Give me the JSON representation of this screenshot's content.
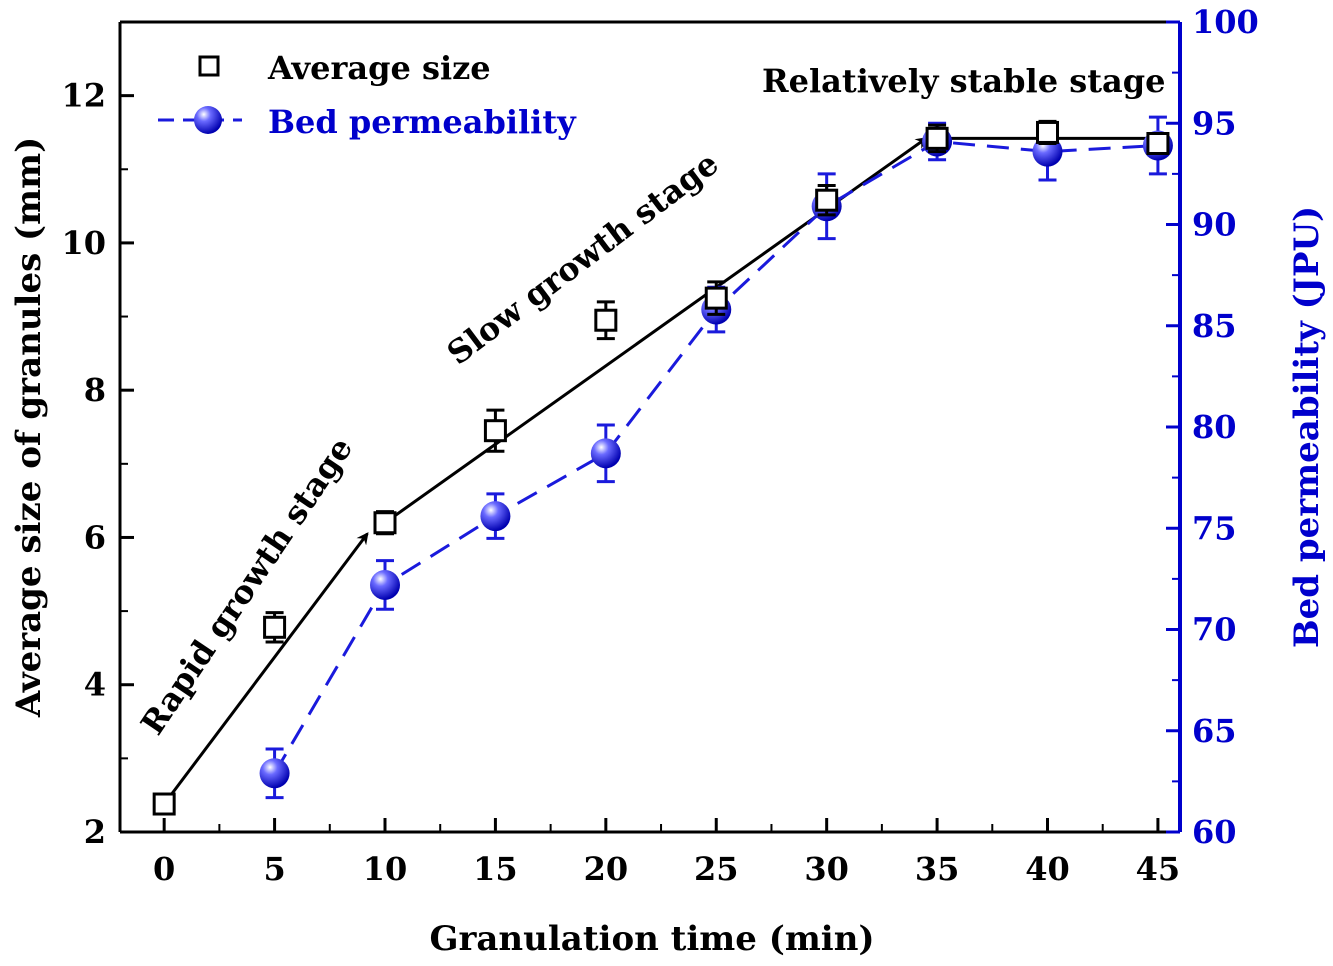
{
  "chart_data": {
    "type": "line",
    "xlabel": "Granulation time (min)",
    "ylabel_left": "Average size of granules (mm)",
    "ylabel_right": "Bed permeability (JPU)",
    "x_ticks": [
      0,
      5,
      10,
      15,
      20,
      25,
      30,
      35,
      40,
      45
    ],
    "xlim": [
      -2,
      46
    ],
    "ylim_left": [
      2,
      13
    ],
    "yticks_left": [
      2,
      4,
      6,
      8,
      10,
      12
    ],
    "ylim_right": [
      60,
      100
    ],
    "yticks_right": [
      60,
      65,
      70,
      75,
      80,
      85,
      90,
      95,
      100
    ],
    "colors": {
      "left_axis": "#000000",
      "right_axis": "#0000cc",
      "permeability": "#1a1adc",
      "arrow": "#000000"
    },
    "series": [
      {
        "name": "Average size",
        "axis": "left",
        "marker": "open-square",
        "x": [
          0,
          5,
          10,
          15,
          20,
          25,
          30,
          35,
          40,
          45
        ],
        "y": [
          2.38,
          4.78,
          6.2,
          7.45,
          8.95,
          9.25,
          10.58,
          11.42,
          11.5,
          11.35
        ],
        "err": [
          0.1,
          0.2,
          0.15,
          0.28,
          0.25,
          0.22,
          0.2,
          0.18,
          0.15,
          0.12
        ]
      },
      {
        "name": "Bed permeability",
        "axis": "right",
        "marker": "filled-circle",
        "line": "dashed",
        "x": [
          5,
          10,
          15,
          20,
          25,
          30,
          35,
          40,
          45
        ],
        "y": [
          62.9,
          72.2,
          75.6,
          78.7,
          85.8,
          90.9,
          94.1,
          93.6,
          93.9
        ],
        "err": [
          1.2,
          1.2,
          1.1,
          1.4,
          1.1,
          1.6,
          0.9,
          1.4,
          1.4
        ]
      }
    ],
    "trend_arrows": [
      {
        "from": [
          0,
          2.38
        ],
        "to": [
          9.2,
          6.05
        ]
      },
      {
        "from": [
          10,
          6.2
        ],
        "to": [
          34.5,
          11.42
        ]
      },
      {
        "from": [
          35,
          11.42
        ],
        "to": [
          45,
          11.42
        ]
      }
    ],
    "annotations": [
      "Rapid growth stage",
      "Slow growth stage",
      "Relatively stable stage"
    ],
    "legend": {
      "position": "top-left",
      "entries": [
        "Average size",
        "Bed permeability"
      ]
    }
  }
}
